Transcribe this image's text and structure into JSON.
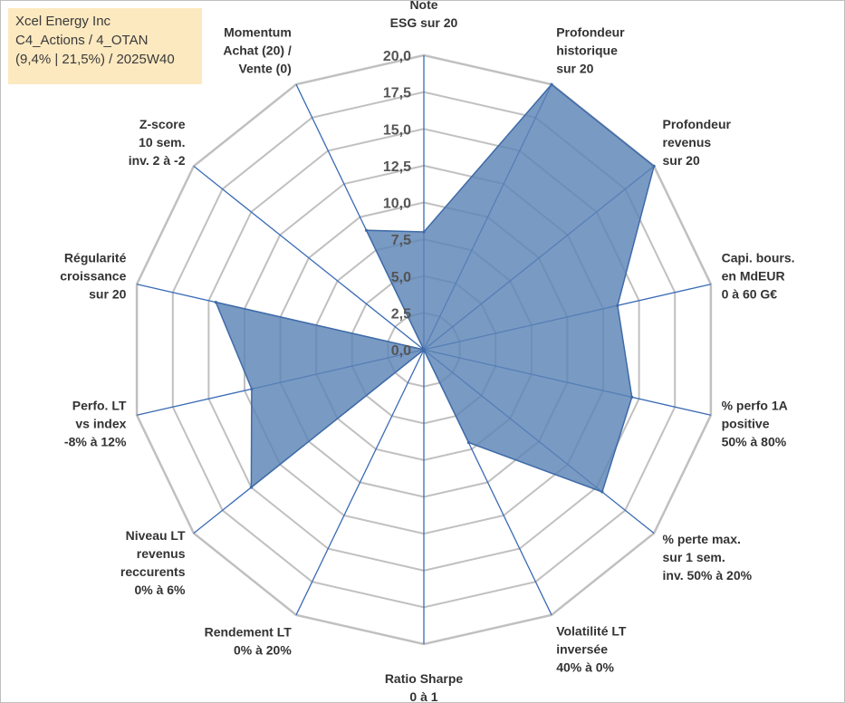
{
  "info": {
    "line1": "Xcel Energy Inc",
    "line2": "C4_Actions / 4_OTAN",
    "line3": "(9,4% | 21,5%) / 2025W40"
  },
  "colors": {
    "fill": "#5b84b6",
    "stroke": "#3f6ba8",
    "grid": "#c0c0c0",
    "spoke": "#3a6bb5",
    "infobox": "#fce9c0"
  },
  "chart_data": {
    "type": "radar",
    "title": "",
    "rmin": 0,
    "rmax": 20,
    "ticks": [
      "0,0",
      "2,5",
      "5,0",
      "7,5",
      "10,0",
      "12,5",
      "15,0",
      "17,5",
      "20,0"
    ],
    "axes": [
      {
        "label": [
          "Note",
          "ESG sur 20"
        ],
        "value": 8.0
      },
      {
        "label": [
          "Profondeur",
          "historique",
          "sur 20"
        ],
        "value": 20.0
      },
      {
        "label": [
          "Profondeur",
          "revenus",
          "sur 20"
        ],
        "value": 20.0
      },
      {
        "label": [
          "Capi. bours.",
          "en MdEUR",
          "0 à 60 G€"
        ],
        "value": 13.5
      },
      {
        "label": [
          "% perfo 1A",
          "positive",
          "50% à 80%"
        ],
        "value": 14.5
      },
      {
        "label": [
          "% perte max.",
          "sur 1 sem.",
          "inv. 50% à 20%"
        ],
        "value": 15.5
      },
      {
        "label": [
          "Volatilité LT",
          "inversée",
          "40% à 0%"
        ],
        "value": 7.0
      },
      {
        "label": [
          "Ratio Sharpe",
          "0 à 1"
        ],
        "value": 0.0
      },
      {
        "label": [
          "Rendement LT",
          "0% à 20%"
        ],
        "value": 0.0
      },
      {
        "label": [
          "Niveau LT",
          "revenus",
          "reccurents",
          "0% à 6%"
        ],
        "value": 15.0
      },
      {
        "label": [
          "Perfo. LT",
          "vs index",
          "-8% à 12%"
        ],
        "value": 12.0
      },
      {
        "label": [
          "Régularité",
          "croissance",
          "sur 20"
        ],
        "value": 14.5
      },
      {
        "label": [
          "Z-score",
          "10 sem.",
          "inv. 2 à -2"
        ],
        "value": 0.0
      },
      {
        "label": [
          "Momentum",
          "Achat (20) /",
          "Vente (0)"
        ],
        "value": 9.0
      }
    ]
  }
}
